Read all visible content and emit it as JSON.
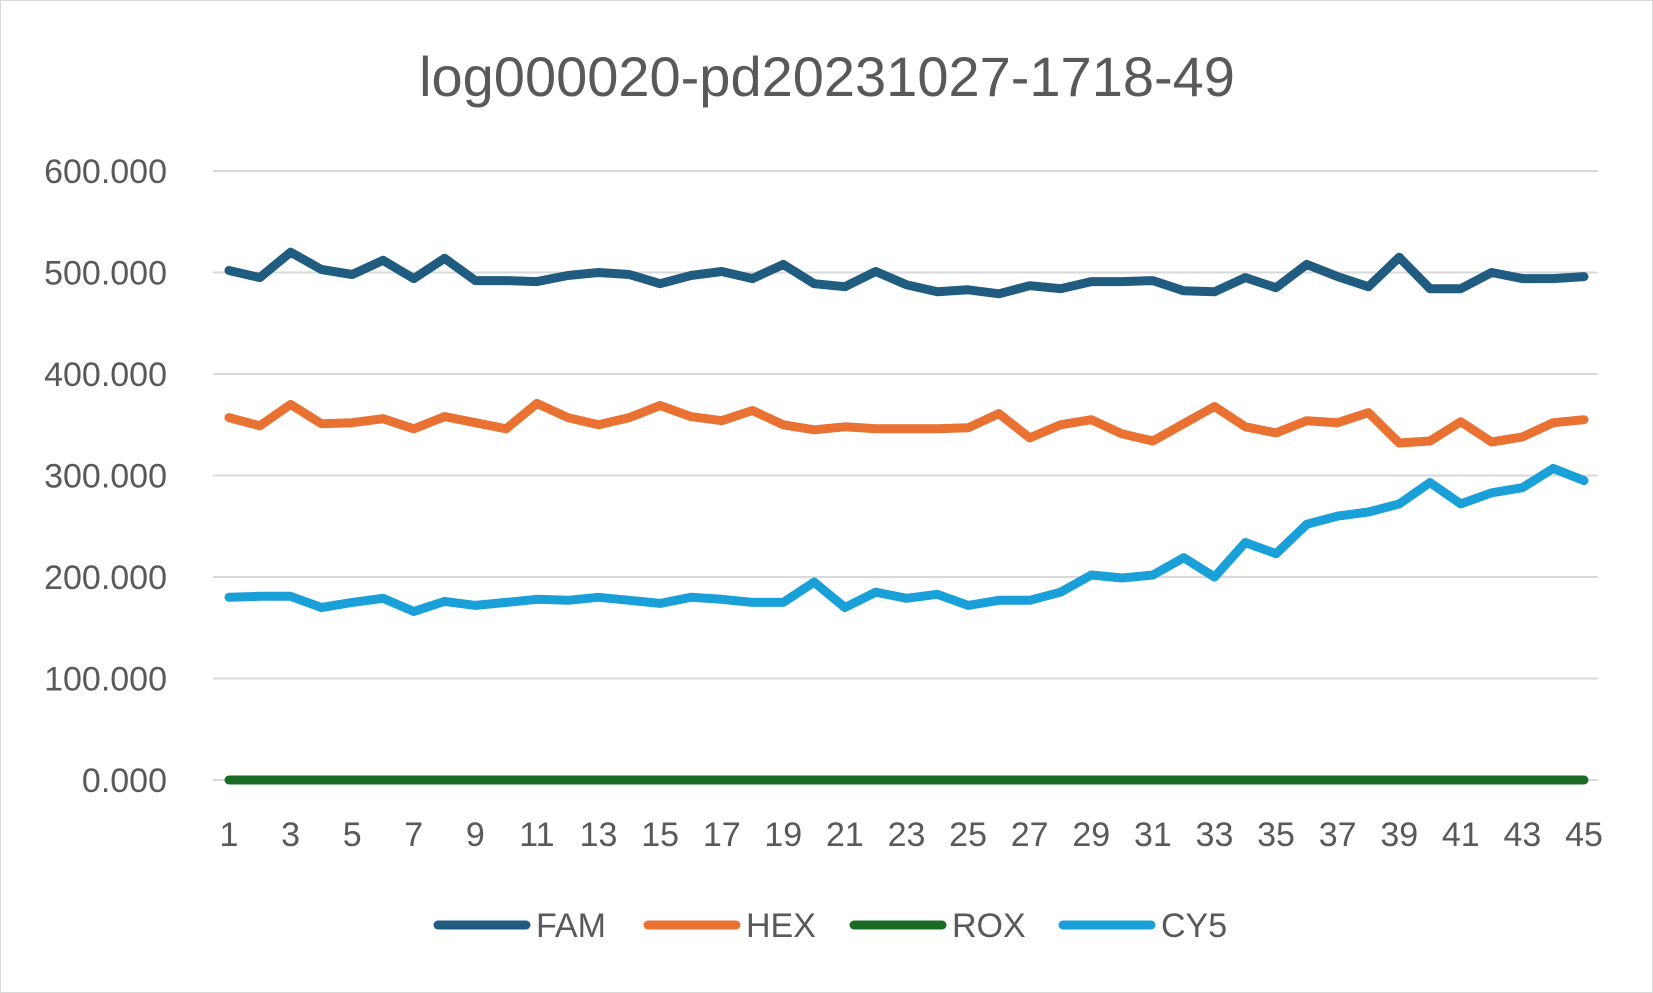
{
  "chart_data": {
    "type": "line",
    "title": "log000020-pd20231027-1718-49",
    "xlabel": "",
    "ylabel": "",
    "ylim": [
      0,
      600
    ],
    "y_ticks": [
      "0.000",
      "100.000",
      "200.000",
      "300.000",
      "400.000",
      "500.000",
      "600.000"
    ],
    "y_tick_values": [
      0,
      100,
      200,
      300,
      400,
      500,
      600
    ],
    "x": [
      1,
      2,
      3,
      4,
      5,
      6,
      7,
      8,
      9,
      10,
      11,
      12,
      13,
      14,
      15,
      16,
      17,
      18,
      19,
      20,
      21,
      22,
      23,
      24,
      25,
      26,
      27,
      28,
      29,
      30,
      31,
      32,
      33,
      34,
      35,
      36,
      37,
      38,
      39,
      40,
      41,
      42,
      43,
      44,
      45
    ],
    "x_tick_labels": [
      "1",
      "3",
      "5",
      "7",
      "9",
      "11",
      "13",
      "15",
      "17",
      "19",
      "21",
      "23",
      "25",
      "27",
      "29",
      "31",
      "33",
      "35",
      "37",
      "39",
      "41",
      "43",
      "45"
    ],
    "grid": true,
    "legend_position": "bottom",
    "series": [
      {
        "name": "FAM",
        "color": "#1f5c80",
        "values": [
          502,
          495,
          520,
          503,
          498,
          512,
          494,
          514,
          492,
          492,
          491,
          497,
          500,
          498,
          489,
          497,
          501,
          494,
          508,
          489,
          486,
          501,
          488,
          481,
          483,
          479,
          487,
          484,
          491,
          491,
          492,
          482,
          481,
          495,
          485,
          508,
          496,
          486,
          515,
          484,
          484,
          500,
          494,
          494,
          496
        ]
      },
      {
        "name": "HEX",
        "color": "#e97132",
        "values": [
          357,
          349,
          370,
          351,
          352,
          356,
          346,
          358,
          352,
          346,
          371,
          357,
          350,
          357,
          369,
          358,
          354,
          364,
          350,
          345,
          348,
          346,
          346,
          346,
          347,
          361,
          337,
          350,
          355,
          341,
          334,
          351,
          368,
          348,
          342,
          354,
          352,
          362,
          332,
          334,
          353,
          333,
          338,
          352,
          355
        ]
      },
      {
        "name": "ROX",
        "color": "#196b24",
        "values": [
          0,
          0,
          0,
          0,
          0,
          0,
          0,
          0,
          0,
          0,
          0,
          0,
          0,
          0,
          0,
          0,
          0,
          0,
          0,
          0,
          0,
          0,
          0,
          0,
          0,
          0,
          0,
          0,
          0,
          0,
          0,
          0,
          0,
          0,
          0,
          0,
          0,
          0,
          0,
          0,
          0,
          0,
          0,
          0,
          0
        ]
      },
      {
        "name": "CY5",
        "color": "#1aa0d9",
        "values": [
          180,
          181,
          181,
          170,
          175,
          179,
          166,
          176,
          172,
          175,
          178,
          177,
          180,
          177,
          174,
          180,
          178,
          175,
          175,
          195,
          170,
          185,
          179,
          183,
          172,
          177,
          177,
          185,
          202,
          199,
          202,
          219,
          200,
          234,
          223,
          252,
          260,
          264,
          272,
          293,
          272,
          283,
          288,
          307,
          295
        ]
      }
    ]
  }
}
